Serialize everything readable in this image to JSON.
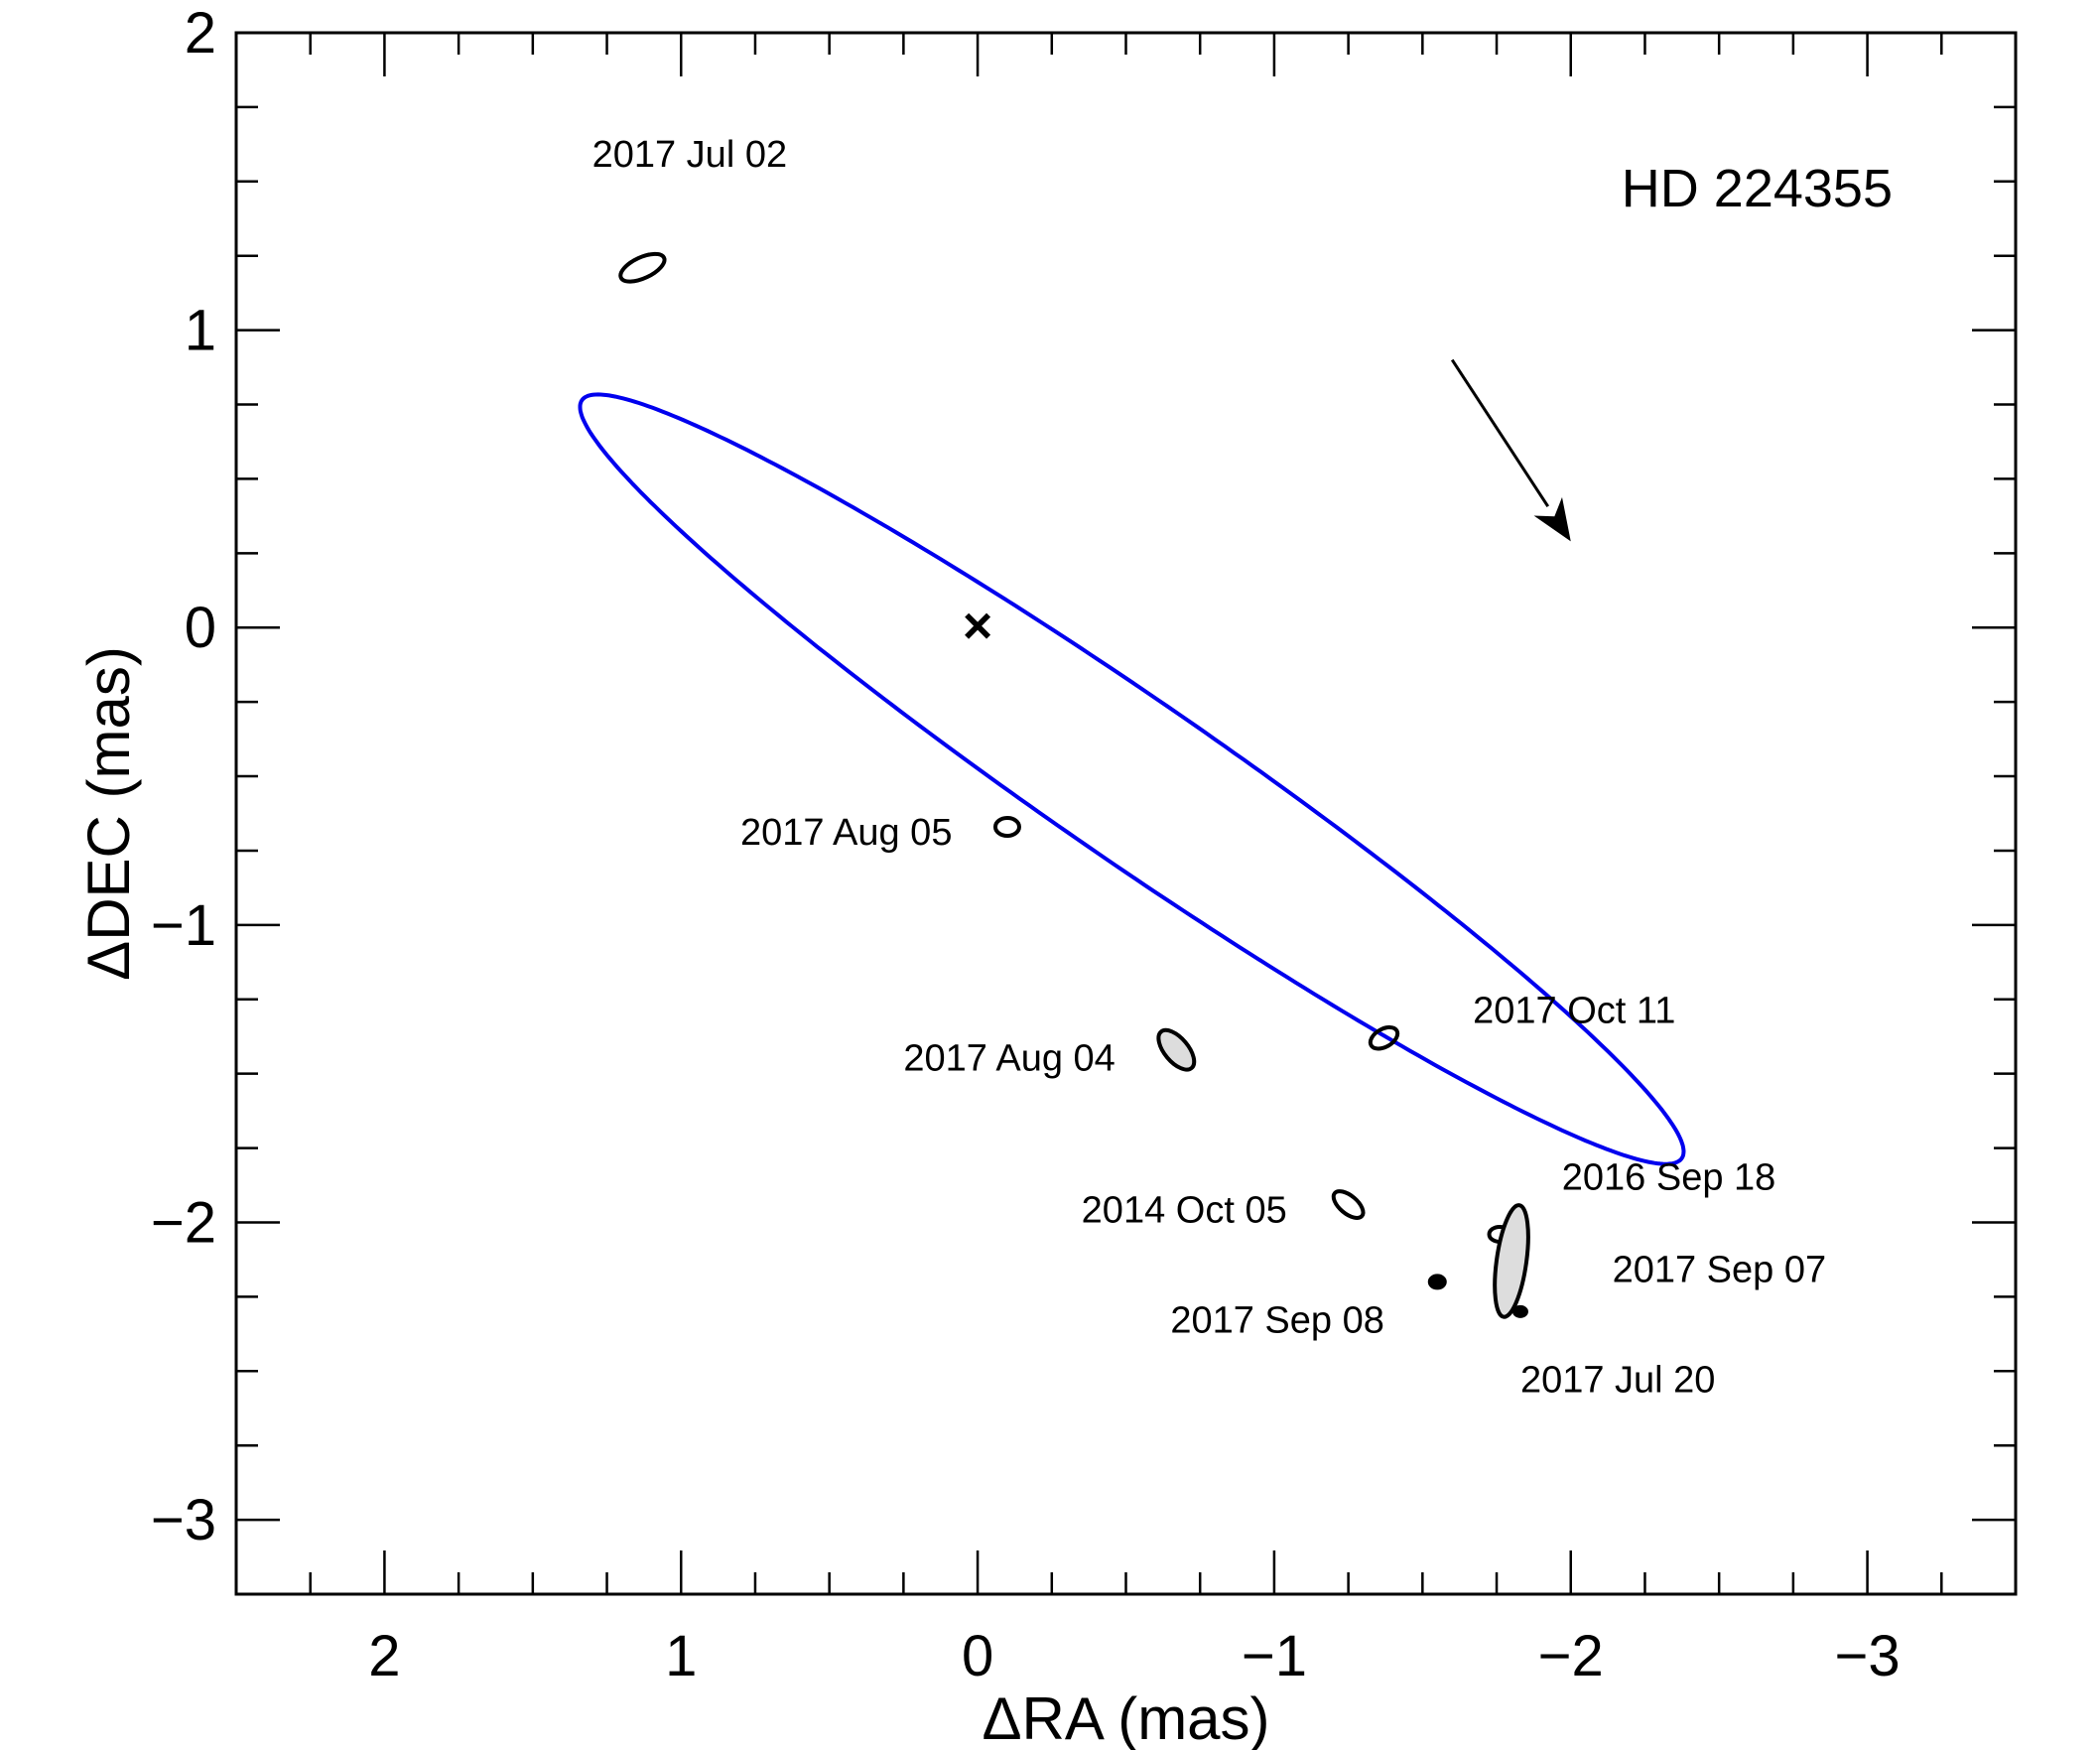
{
  "chart_data": {
    "type": "scatter",
    "title": "HD 224355",
    "xlabel": "ΔRA (mas)",
    "ylabel": "ΔDEC (mas)",
    "xlim": [
      2.5,
      -3.5
    ],
    "ylim": [
      -3.25,
      2.0
    ],
    "x_axis_reversed": true,
    "x_ticks": [
      2,
      1,
      0,
      -1,
      -2,
      -3
    ],
    "x_tick_labels": [
      "2",
      "1",
      "0",
      "−1",
      "−2",
      "−3"
    ],
    "y_ticks": [
      2,
      1,
      0,
      -1,
      -2,
      -3
    ],
    "y_tick_labels": [
      "2",
      "1",
      "0",
      "−1",
      "−2",
      "−3"
    ],
    "center_marker": {
      "x": 0,
      "y": 0,
      "symbol": "×"
    },
    "orbit": {
      "color": "#0000ee",
      "center": [
        -0.52,
        -0.51
      ],
      "semi_major": 2.25,
      "semi_minor": 0.27,
      "pa_deg": 55.5
    },
    "measurements": [
      {
        "label": "2017 Jul 02",
        "x": 1.13,
        "y": 1.21,
        "err_major": 0.08,
        "err_minor": 0.035,
        "angle_deg": -25,
        "fill": "none"
      },
      {
        "label": "2017 Aug 05",
        "x": -0.1,
        "y": -0.67,
        "err_major": 0.04,
        "err_minor": 0.03,
        "angle_deg": 0,
        "fill": "none"
      },
      {
        "label": "2017 Aug 04",
        "x": -0.67,
        "y": -1.42,
        "err_major": 0.08,
        "err_minor": 0.04,
        "angle_deg": 50,
        "fill": "#dddddd"
      },
      {
        "label": "2017 Oct 11",
        "x": -1.37,
        "y": -1.38,
        "err_major": 0.05,
        "err_minor": 0.03,
        "angle_deg": -30,
        "fill": "none"
      },
      {
        "label": "2014 Oct 05",
        "x": -1.25,
        "y": -1.94,
        "err_major": 0.06,
        "err_minor": 0.03,
        "angle_deg": 40,
        "fill": "none"
      },
      {
        "label": "2017 Sep 08",
        "x": -1.55,
        "y": -2.2,
        "err_major": 0.025,
        "err_minor": 0.02,
        "angle_deg": 0,
        "fill": "#000000"
      },
      {
        "label": "2016 Sep 18",
        "x": -1.76,
        "y": -2.04,
        "err_major": 0.035,
        "err_minor": 0.025,
        "angle_deg": 0,
        "fill": "none"
      },
      {
        "label": "2017 Sep 07",
        "x": -1.8,
        "y": -2.13,
        "err_major": 0.19,
        "err_minor": 0.05,
        "angle_deg": -82,
        "fill": "#dddddd"
      },
      {
        "label": "2017 Jul 20",
        "x": -1.83,
        "y": -2.3,
        "err_major": 0.02,
        "err_minor": 0.015,
        "angle_deg": 0,
        "fill": "#000000"
      }
    ],
    "annotations": [
      {
        "text": "2017 Jul 02",
        "x": 1.3,
        "y": 1.55
      },
      {
        "text": "2017 Aug 05",
        "x": 0.8,
        "y": -0.73
      },
      {
        "text": "2017 Aug 04",
        "x": 0.25,
        "y": -1.49
      },
      {
        "text": "2017 Oct 11",
        "x": -1.67,
        "y": -1.33
      },
      {
        "text": "2014 Oct 05",
        "x": -0.35,
        "y": -2.0
      },
      {
        "text": "2016 Sep 18",
        "x": -1.97,
        "y": -1.89
      },
      {
        "text": "2017 Sep 07",
        "x": -2.14,
        "y": -2.2
      },
      {
        "text": "2017 Sep 08",
        "x": -0.65,
        "y": -2.37
      },
      {
        "text": "2017 Jul 20",
        "x": -1.83,
        "y": -2.57
      }
    ],
    "direction_arrow": {
      "from": [
        -1.6,
        0.9
      ],
      "to": [
        -2.0,
        0.29
      ]
    },
    "grid": false,
    "legend": "none"
  }
}
